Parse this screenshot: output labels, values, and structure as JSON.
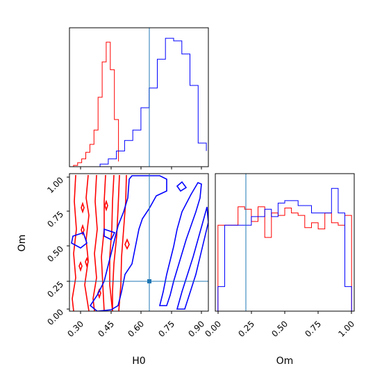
{
  "chart_data": {
    "type": "corner",
    "parameters": [
      "H0",
      "Om"
    ],
    "truth": {
      "H0": 0.65,
      "Om": 0.21
    },
    "colors": {
      "red_chain": "#ff0000",
      "blue_chain": "#0000ff",
      "truth": "#1f77b4"
    },
    "panels": [
      {
        "name": "H0 marginal",
        "type": "histogram-step",
        "xlim": [
          0.25,
          0.93
        ],
        "series": [
          {
            "color": "red",
            "bins": [
              0.25,
              0.27,
              0.29,
              0.31,
              0.33,
              0.35,
              0.37,
              0.39,
              0.41,
              0.43,
              0.45,
              0.47,
              0.49
            ],
            "counts": [
              0,
              1,
              3,
              6,
              11,
              17,
              28,
              53,
              80,
              95,
              74,
              36,
              4
            ]
          },
          {
            "color": "blue",
            "bins": [
              0.36,
              0.4,
              0.44,
              0.48,
              0.52,
              0.56,
              0.6,
              0.64,
              0.68,
              0.72,
              0.76,
              0.8,
              0.84,
              0.88,
              0.92
            ],
            "counts": [
              0,
              2,
              6,
              12,
              20,
              28,
              45,
              60,
              82,
              98,
              96,
              86,
              62,
              18,
              12
            ]
          }
        ]
      },
      {
        "name": "H0 vs Om",
        "type": "contour",
        "xlim": [
          0.25,
          0.93
        ],
        "ylim": [
          0.0,
          1.0
        ],
        "xticks": [
          "0.30",
          "0.45",
          "0.60",
          "0.75",
          "0.90"
        ],
        "yticks": [
          "0.00",
          "0.25",
          "0.50",
          "0.75",
          "1.00"
        ],
        "xlabel": "H0",
        "ylabel": "Om",
        "truth_marker": [
          0.65,
          0.21
        ]
      },
      {
        "name": "Om marginal",
        "type": "histogram-step",
        "xlim": [
          -0.02,
          1.02
        ],
        "xticks": [
          "0.00",
          "0.25",
          "0.50",
          "0.75",
          "1.00"
        ],
        "xlabel": "Om",
        "series": [
          {
            "color": "red",
            "bins": [
              0.0,
              0.05,
              0.1,
              0.15,
              0.2,
              0.25,
              0.3,
              0.35,
              0.4,
              0.45,
              0.5,
              0.55,
              0.6,
              0.65,
              0.7,
              0.75,
              0.8,
              0.85,
              0.9,
              0.95,
              1.0
            ],
            "counts": [
              70,
              70,
              70,
              85,
              83,
              73,
              85,
              60,
              80,
              78,
              84,
              80,
              78,
              68,
              72,
              67,
              80,
              72,
              70,
              78
            ]
          },
          {
            "color": "blue",
            "bins": [
              0.0,
              0.05,
              0.1,
              0.15,
              0.2,
              0.25,
              0.3,
              0.35,
              0.4,
              0.45,
              0.5,
              0.55,
              0.6,
              0.65,
              0.7,
              0.75,
              0.8,
              0.85,
              0.9,
              0.95,
              1.0
            ],
            "counts": [
              20,
              70,
              70,
              70,
              70,
              77,
              77,
              83,
              77,
              88,
              90,
              90,
              86,
              86,
              80,
              80,
              80,
              100,
              80,
              20
            ]
          }
        ]
      }
    ]
  }
}
